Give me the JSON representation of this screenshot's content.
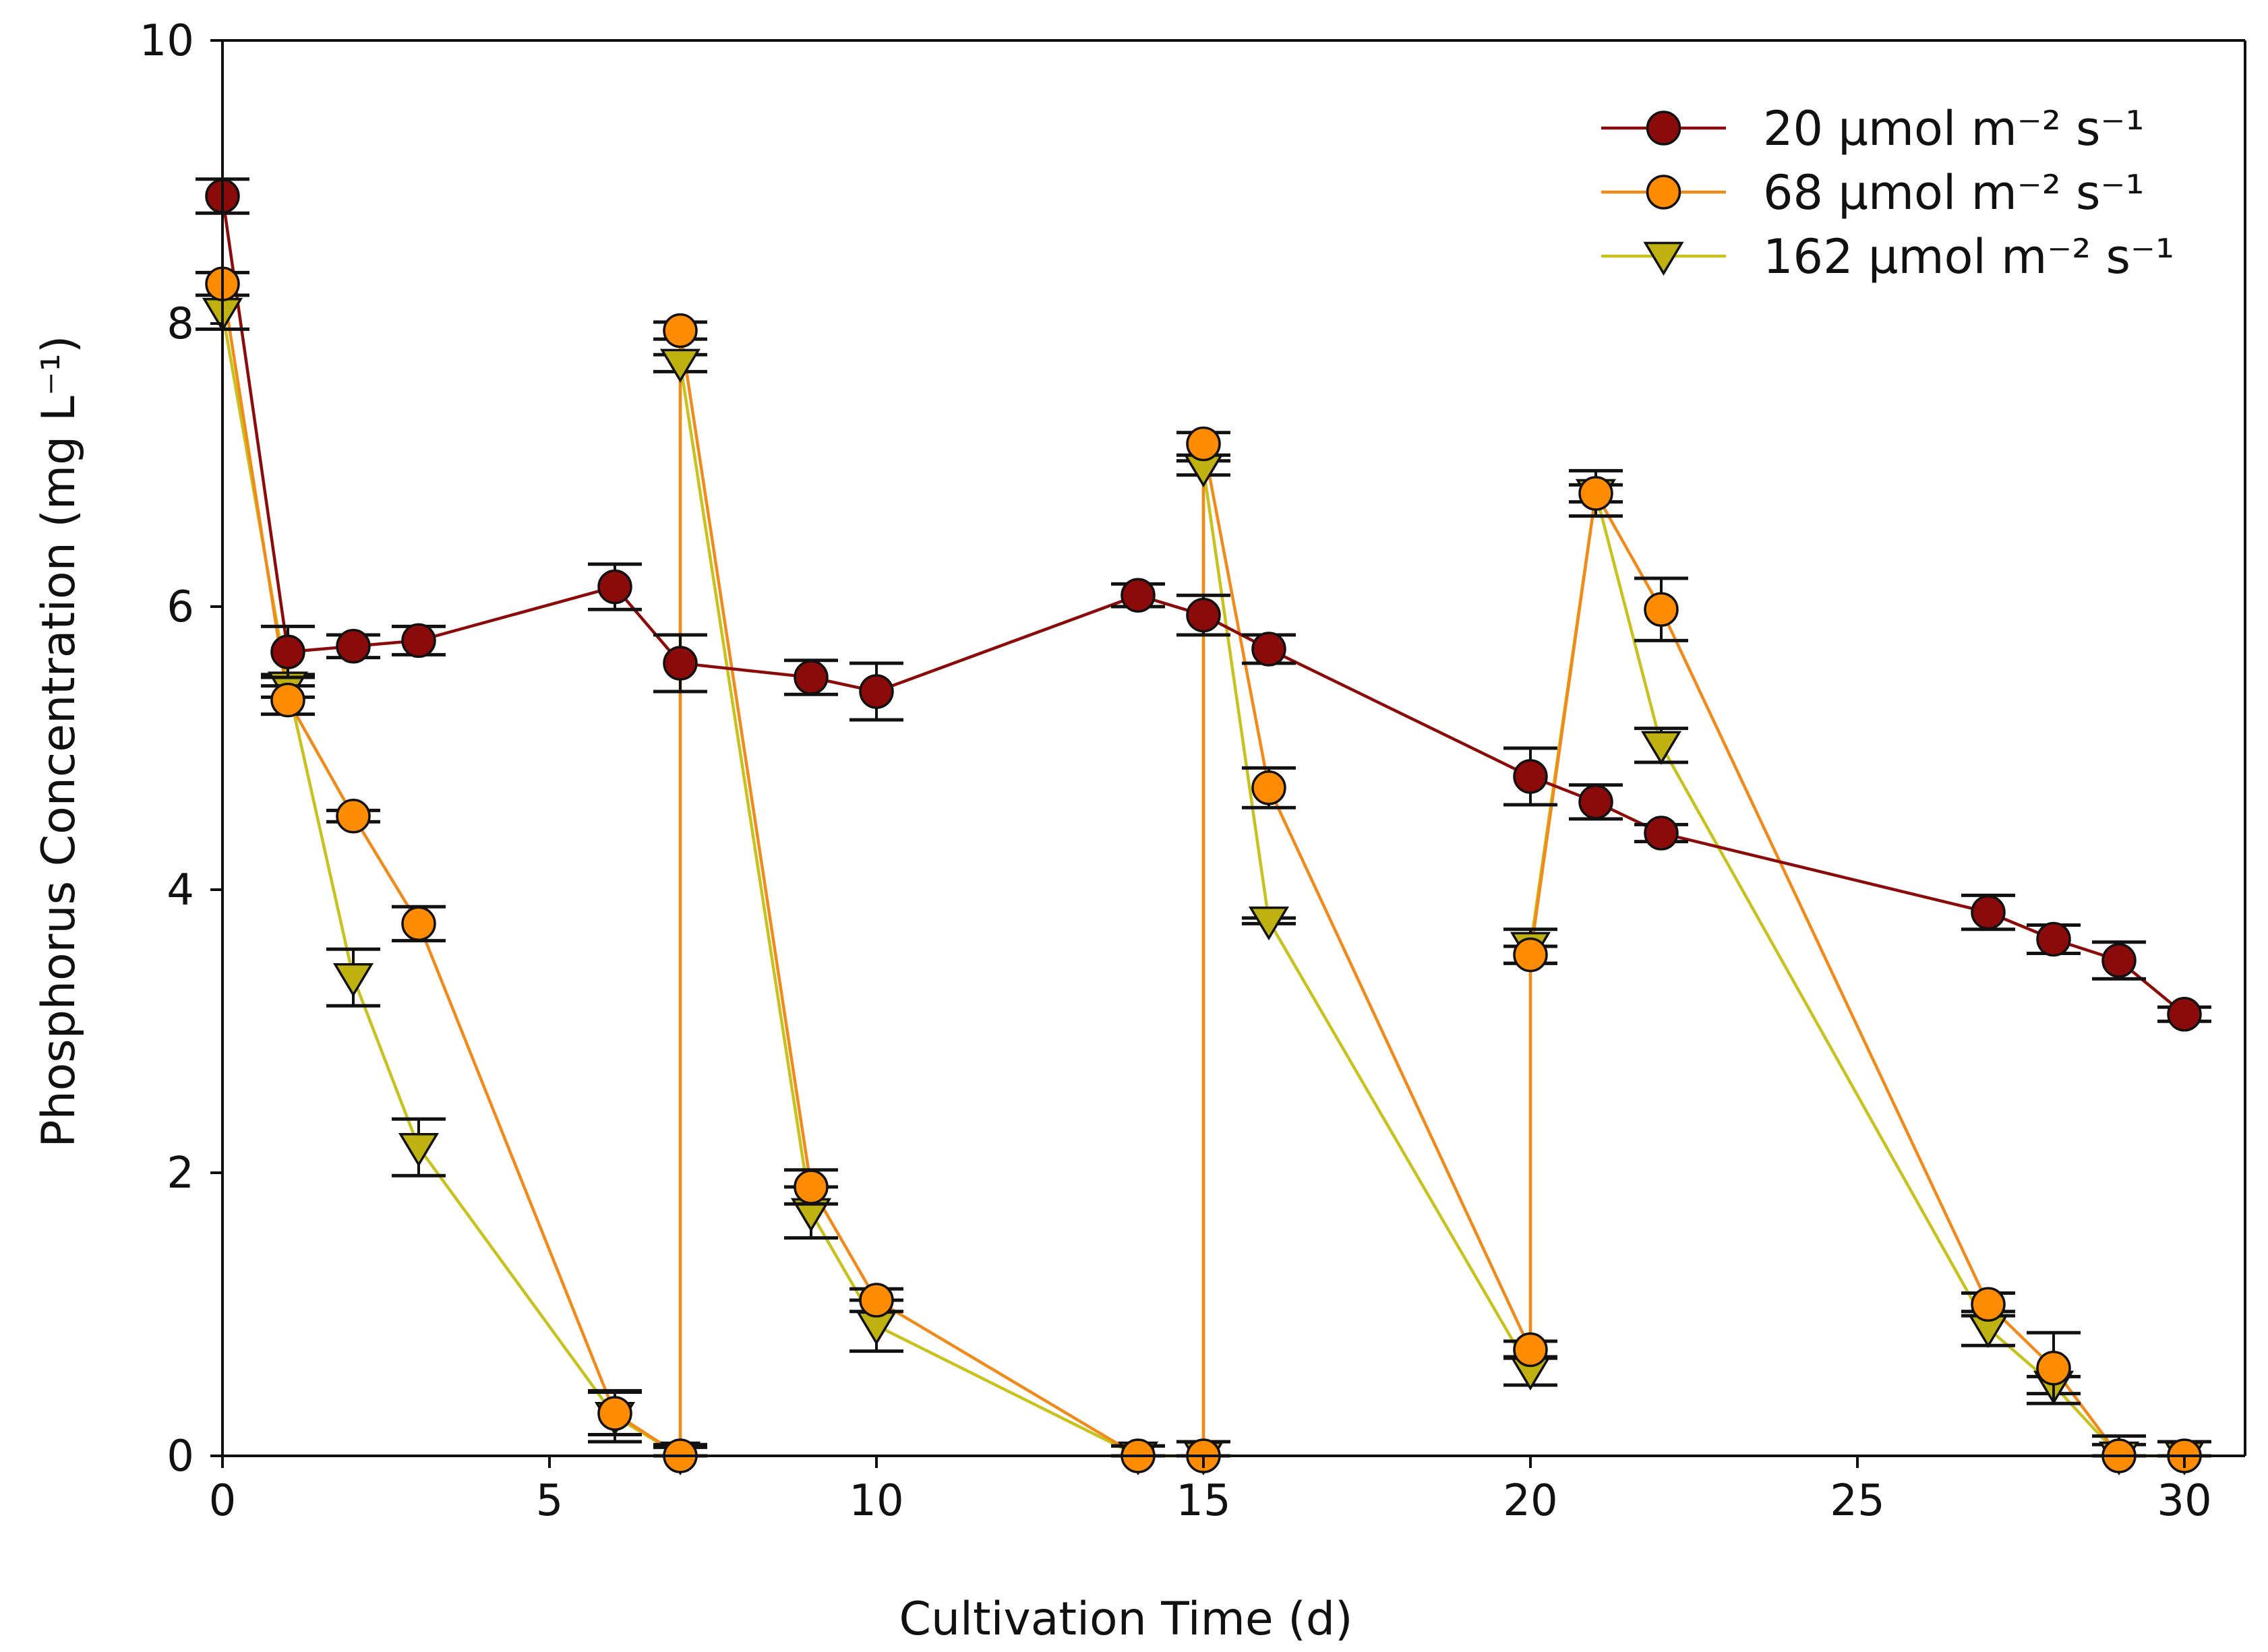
{
  "chart_data": {
    "type": "line",
    "title": "",
    "xlabel": "Cultivation Time (d)",
    "ylabel": "Phosphorus Concentration (mg L⁻¹)",
    "xlim": [
      0,
      30.8
    ],
    "ylim": [
      0,
      10
    ],
    "xticks": [
      0,
      5,
      10,
      15,
      20,
      25,
      30
    ],
    "yticks": [
      0,
      2,
      4,
      6,
      8,
      10
    ],
    "xtick_labels": [
      "0",
      "5",
      "10",
      "15",
      "20",
      "25",
      "30"
    ],
    "ytick_labels": [
      "0",
      "2",
      "4",
      "6",
      "8",
      "10"
    ],
    "legend_position": "top-right",
    "series": [
      {
        "name": "20 μmol m⁻² s⁻¹",
        "marker": "circle",
        "color": "#8b0a0a",
        "fill": "#8b0a0a",
        "x": [
          0,
          1,
          2,
          3,
          6,
          7,
          9,
          10,
          14,
          15,
          16,
          20,
          21,
          22,
          27,
          28,
          29,
          30
        ],
        "y": [
          8.9,
          5.68,
          5.72,
          5.76,
          6.14,
          5.6,
          5.5,
          5.4,
          6.08,
          5.94,
          5.7,
          4.8,
          4.62,
          4.4,
          3.84,
          3.65,
          3.5,
          3.12
        ],
        "err": [
          0.12,
          0.18,
          0.08,
          0.1,
          0.16,
          0.2,
          0.12,
          0.2,
          0.08,
          0.14,
          0.1,
          0.2,
          0.12,
          0.06,
          0.12,
          0.1,
          0.13,
          0.05
        ]
      },
      {
        "name": "68 μmol m⁻² s⁻¹",
        "marker": "circle",
        "color": "#f08a1a",
        "fill": "#ff8c00",
        "x": [
          0,
          1,
          2,
          3,
          6,
          7,
          7,
          9,
          10,
          14,
          15,
          15,
          16,
          20,
          20,
          21,
          22,
          27,
          28,
          29,
          30
        ],
        "y": [
          8.28,
          5.34,
          4.52,
          3.76,
          0.3,
          0.0,
          7.95,
          1.9,
          1.1,
          0.0,
          0.0,
          7.15,
          4.72,
          0.75,
          3.54,
          6.8,
          5.98,
          1.07,
          0.62,
          0.0,
          0.0
        ],
        "err": [
          0.08,
          0.1,
          0.04,
          0.12,
          0.15,
          0.08,
          0.06,
          0.12,
          0.08,
          0.07,
          0.1,
          0.08,
          0.14,
          0.06,
          0.06,
          0.06,
          0.22,
          0.08,
          0.25,
          0.14,
          0.1
        ]
      },
      {
        "name": "162 μmol m⁻² s⁻¹",
        "marker": "triangle-down",
        "color": "#c8c21e",
        "fill": "#bfb10f",
        "x": [
          0,
          1,
          2,
          3,
          6,
          7,
          7,
          9,
          10,
          14,
          15,
          15,
          16,
          20,
          20,
          21,
          22,
          27,
          28,
          29,
          30
        ],
        "y": [
          8.08,
          5.44,
          3.38,
          2.18,
          0.28,
          0.0,
          7.72,
          1.72,
          0.92,
          0.0,
          0.0,
          6.98,
          3.78,
          0.6,
          3.6,
          6.8,
          5.02,
          0.9,
          0.5,
          0.0,
          0.0
        ],
        "err": [
          0.12,
          0.08,
          0.2,
          0.2,
          0.18,
          0.06,
          0.06,
          0.18,
          0.18,
          0.07,
          0.1,
          0.05,
          0.02,
          0.1,
          0.12,
          0.16,
          0.12,
          0.12,
          0.06,
          0.08,
          0.1
        ]
      }
    ]
  }
}
